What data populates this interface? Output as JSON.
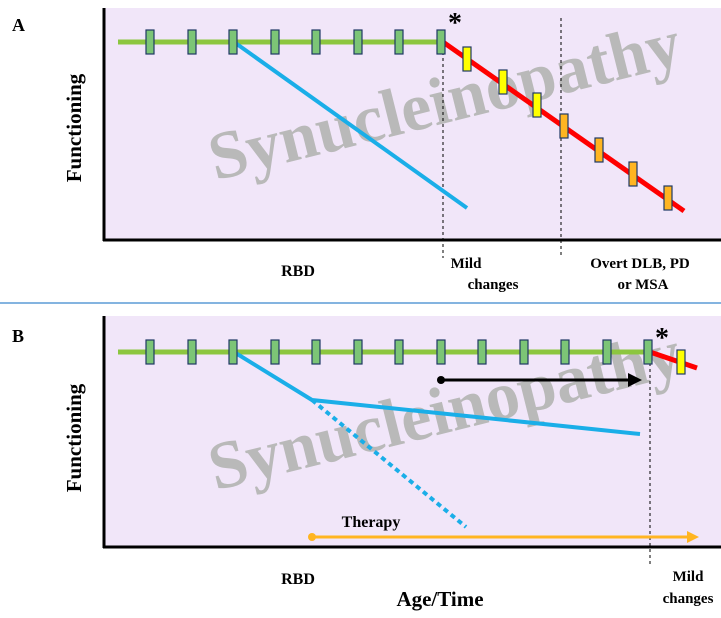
{
  "panel_a": {
    "letter": "A",
    "ylabel": "Functioning",
    "watermark": "Synucleinopathy",
    "asterisk": "*",
    "stage_rbd": "RBD",
    "stage_mild_1": "Mild",
    "stage_mild_2": "changes",
    "stage_overt_1": "Overt DLB, PD",
    "stage_overt_2": "or MSA"
  },
  "panel_b": {
    "letter": "B",
    "ylabel": "Functioning",
    "watermark": "Synucleinopathy",
    "asterisk": "*",
    "therapy_label": "Therapy",
    "stage_rbd": "RBD",
    "xlabel": "Age/Time",
    "stage_mild_1": "Mild",
    "stage_mild_2": "changes"
  },
  "colors": {
    "background": "#f1e6f9",
    "healthy_line": "#8cc63f",
    "decline_line": "#ff0000",
    "blue_line": "#1aaee8",
    "therapy_arrow": "#ffb521",
    "marker_green": "#7cc576",
    "marker_yellow": "#ffff00",
    "marker_orange": "#ffb521"
  }
}
